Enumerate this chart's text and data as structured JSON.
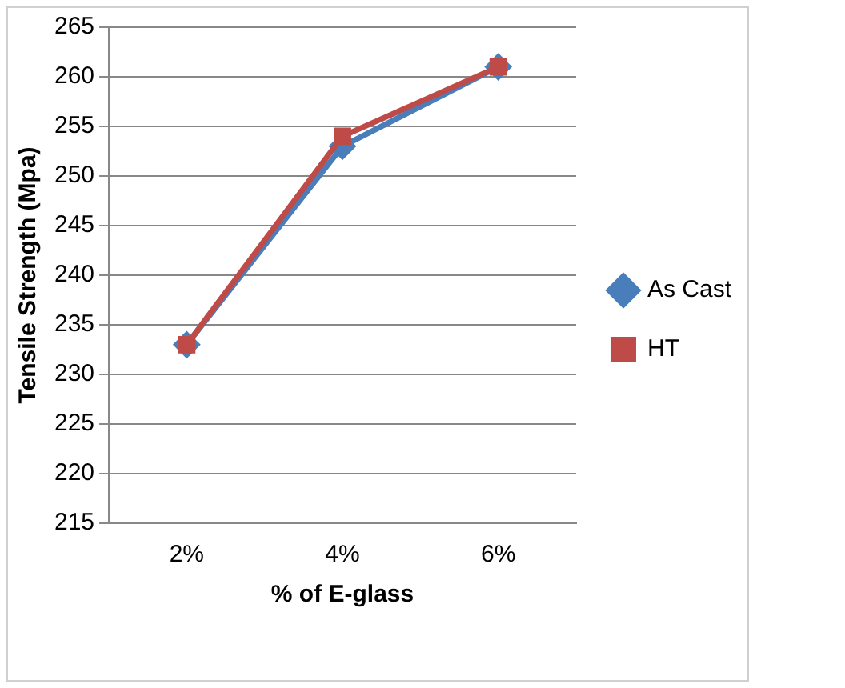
{
  "chart_data": {
    "type": "line",
    "xlabel": "% of E-glass",
    "ylabel": "Tensile Strength (Mpa)",
    "categories": [
      "2%",
      "4%",
      "6%"
    ],
    "series": [
      {
        "name": "As Cast",
        "color": "#4a7ebb",
        "values": [
          233,
          253,
          261
        ],
        "marker": "diamond"
      },
      {
        "name": "HT",
        "color": "#be4b48",
        "values": [
          233,
          254,
          261
        ],
        "marker": "square"
      }
    ],
    "ylim": [
      215,
      265
    ],
    "yticks": [
      215,
      220,
      225,
      230,
      235,
      240,
      245,
      250,
      255,
      260,
      265
    ],
    "grid": "y",
    "legend": "right"
  }
}
